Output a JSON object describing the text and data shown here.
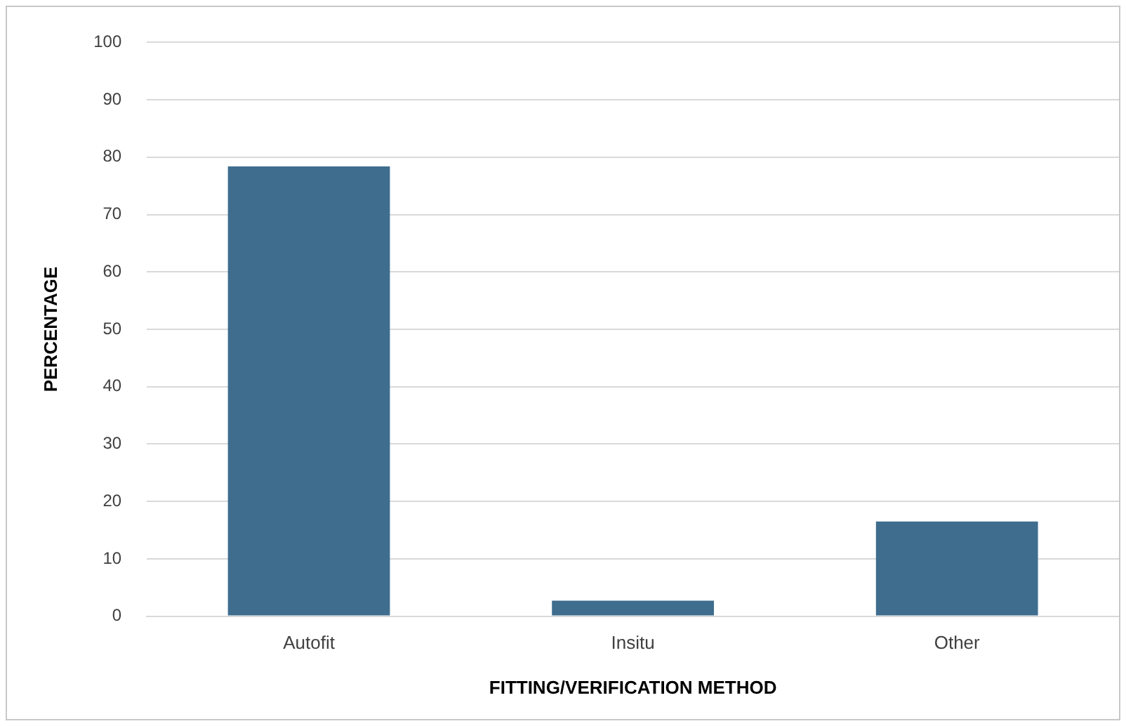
{
  "chart_data": {
    "type": "bar",
    "xlabel": "FITTING/VERIFICATION METHOD",
    "ylabel": "PERCENTAGE",
    "categories": [
      "Autofit",
      "Insitu",
      "Other"
    ],
    "values": [
      78.4,
      2.7,
      16.5
    ],
    "color": "#3f6d8e",
    "ylim": [
      0,
      100
    ],
    "yticks": [
      0,
      10,
      20,
      30,
      40,
      50,
      60,
      70,
      80,
      90,
      100
    ],
    "grid": "y"
  }
}
